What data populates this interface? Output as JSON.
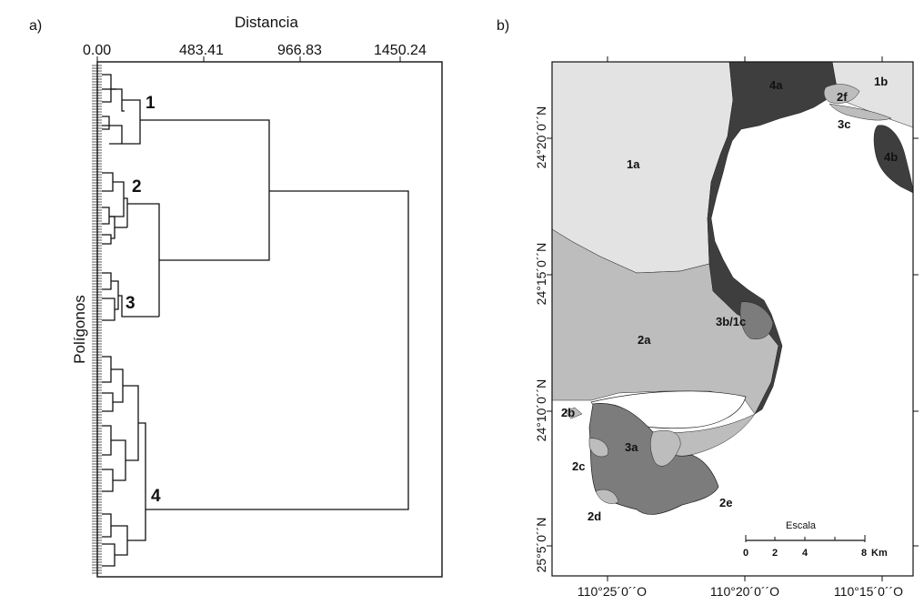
{
  "panel_a": {
    "label": "a)",
    "x_axis_title": "Distancia",
    "y_axis_title": "Polígonos",
    "ticks": [
      "0.00",
      "483.41",
      "966.83",
      "1450.24"
    ],
    "clusters": [
      "1",
      "2",
      "3",
      "4"
    ]
  },
  "panel_b": {
    "label": "b)",
    "zones": {
      "z1a": "1a",
      "z1b": "1b",
      "z2a": "2a",
      "z2b": "2b",
      "z2c": "2c",
      "z2d": "2d",
      "z2e": "2e",
      "z2f": "2f",
      "z3a": "3a",
      "z3b1c": "3b/1c",
      "z3c": "3c",
      "z4a": "4a",
      "z4b": "4b"
    },
    "latitudes": [
      "24°20´0´´N",
      "24°15´0´´N",
      "24°10´0´´N",
      "25°5´0´´N"
    ],
    "longitudes": [
      "110°25´0´´O",
      "110°20´0´´O",
      "110°15´0´´O"
    ],
    "scale": {
      "title": "Escala",
      "labels": [
        "0",
        "2",
        "4",
        "8"
      ],
      "unit": "Km"
    },
    "colors": {
      "zone1": "#e3e3e3",
      "zone2": "#bdbdbd",
      "zone3": "#7c7c7c",
      "zone4": "#3e3e3e"
    }
  }
}
